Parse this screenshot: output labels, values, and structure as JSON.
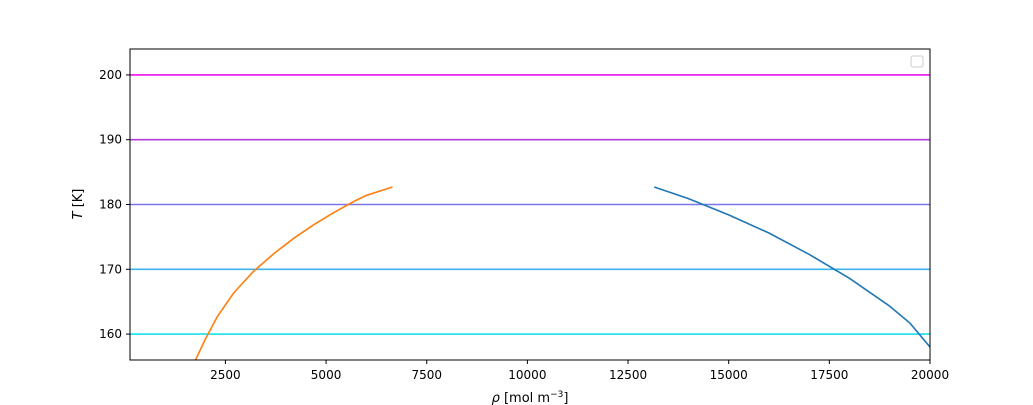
{
  "chart_data": {
    "type": "line",
    "title": "",
    "xlabel": {
      "symbol": "ρ",
      "unit_prefix": " [mol m",
      "unit_exp": "−3",
      "unit_suffix": "]"
    },
    "ylabel": {
      "symbol": "T",
      "unit": " [K]"
    },
    "xlim": [
      130,
      20000
    ],
    "ylim": [
      156,
      204
    ],
    "x_ticks": [
      2500,
      5000,
      7500,
      10000,
      12500,
      15000,
      17500,
      20000
    ],
    "y_ticks": [
      160,
      170,
      180,
      190,
      200
    ],
    "grid": false,
    "legend": {
      "placement": "top-right",
      "entries": []
    },
    "hlines": [
      {
        "y": 160,
        "color": "#18e0e8"
      },
      {
        "y": 170,
        "color": "#3cb4f0"
      },
      {
        "y": 180,
        "color": "#7878ee"
      },
      {
        "y": 190,
        "color": "#b43cdc"
      },
      {
        "y": 200,
        "color": "#f00ff0"
      }
    ],
    "series": [
      {
        "color": "#ff7f0e",
        "points": [
          [
            1750,
            155.9
          ],
          [
            2000,
            159.2
          ],
          [
            2300,
            162.7
          ],
          [
            2700,
            166.3
          ],
          [
            3200,
            169.7
          ],
          [
            3700,
            172.4
          ],
          [
            4200,
            174.8
          ],
          [
            4700,
            176.9
          ],
          [
            5200,
            178.8
          ],
          [
            5700,
            180.5
          ],
          [
            6000,
            181.4
          ],
          [
            6300,
            182.0
          ],
          [
            6650,
            182.7
          ]
        ]
      },
      {
        "color": "#1f77b4",
        "points": [
          [
            13150,
            182.7
          ],
          [
            14000,
            180.9
          ],
          [
            15000,
            178.4
          ],
          [
            16000,
            175.6
          ],
          [
            17000,
            172.3
          ],
          [
            18000,
            168.6
          ],
          [
            19000,
            164.3
          ],
          [
            19500,
            161.7
          ],
          [
            20000,
            158.0
          ]
        ]
      }
    ]
  }
}
